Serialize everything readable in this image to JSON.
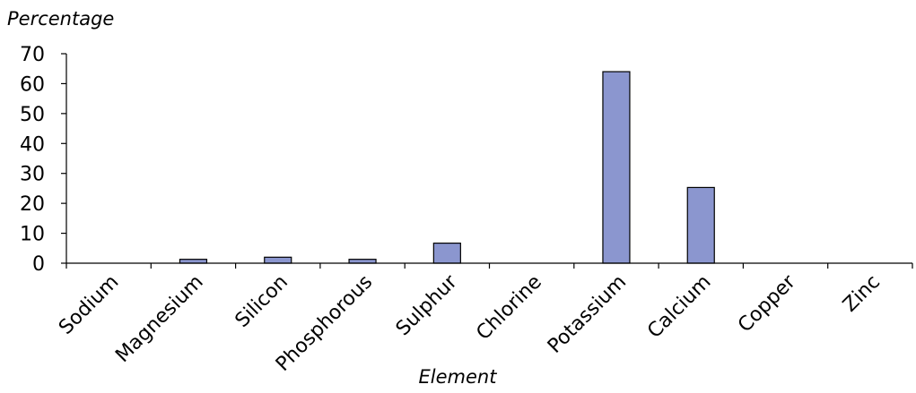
{
  "chart_data": {
    "type": "bar",
    "title": "",
    "xlabel": "Element",
    "ylabel": "Percentage",
    "categories": [
      "Sodium",
      "Magnesium",
      "Silicon",
      "Phosphorous",
      "Sulphur",
      "Chlorine",
      "Potassium",
      "Calcium",
      "Copper",
      "Zinc"
    ],
    "values": [
      0,
      1.3,
      2,
      1.3,
      6.7,
      0,
      64,
      25.3,
      0,
      0
    ],
    "ylim": [
      0,
      70
    ],
    "yticks": [
      "0",
      "10",
      "20",
      "30",
      "40",
      "50",
      "60",
      "70"
    ],
    "grid": false,
    "bar_color": "#8b96cf",
    "bar_edge_color": "#000000"
  }
}
